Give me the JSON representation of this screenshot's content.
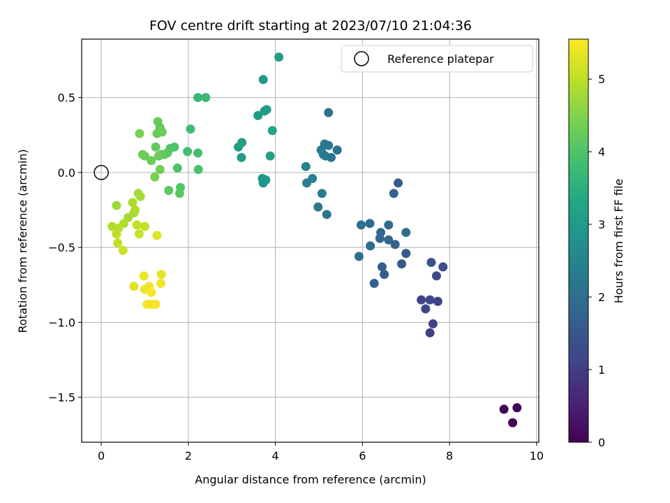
{
  "chart_data": {
    "type": "scatter",
    "title": "FOV centre drift starting at 2023/07/10 21:04:36",
    "xlabel": "Angular distance from reference (arcmin)",
    "ylabel": "Rotation from reference (arcmin)",
    "xlim": [
      -0.45,
      10.05
    ],
    "ylim": [
      -1.8,
      0.89
    ],
    "xticks": [
      0,
      2,
      4,
      6,
      8,
      10
    ],
    "xtick_labels": [
      "0",
      "2",
      "4",
      "6",
      "8",
      "10"
    ],
    "yticks": [
      0.5,
      0.0,
      -0.5,
      -1.0,
      -1.5
    ],
    "ytick_labels": [
      "0.5",
      "0.0",
      "−0.5",
      "−1.0",
      "−1.5"
    ],
    "grid": true,
    "legend": {
      "placement": "top-right",
      "label": "Reference platepar"
    },
    "reference_point": {
      "x": 0,
      "y": 0
    },
    "colorbar": {
      "label": "Hours from first FF file",
      "range": [
        0,
        5.55
      ],
      "ticks": [
        0,
        1,
        2,
        3,
        4,
        5
      ],
      "tick_labels": [
        "0",
        "1",
        "2",
        "3",
        "4",
        "5"
      ],
      "colormap": "viridis"
    },
    "points": [
      {
        "x": 9.25,
        "y": -1.58,
        "t": 0.05
      },
      {
        "x": 9.55,
        "y": -1.57,
        "t": 0.03
      },
      {
        "x": 9.45,
        "y": -1.67,
        "t": 0.08
      },
      {
        "x": 7.55,
        "y": -1.07,
        "t": 1.0
      },
      {
        "x": 7.62,
        "y": -1.01,
        "t": 1.05
      },
      {
        "x": 7.35,
        "y": -0.85,
        "t": 1.1
      },
      {
        "x": 7.45,
        "y": -0.91,
        "t": 1.15
      },
      {
        "x": 7.55,
        "y": -0.85,
        "t": 1.2
      },
      {
        "x": 7.73,
        "y": -0.86,
        "t": 1.1
      },
      {
        "x": 7.7,
        "y": -0.69,
        "t": 1.25
      },
      {
        "x": 7.85,
        "y": -0.63,
        "t": 1.3
      },
      {
        "x": 7.58,
        "y": -0.6,
        "t": 1.35
      },
      {
        "x": 6.9,
        "y": -0.61,
        "t": 1.5
      },
      {
        "x": 7.0,
        "y": -0.54,
        "t": 1.55
      },
      {
        "x": 6.5,
        "y": -0.68,
        "t": 1.6
      },
      {
        "x": 6.45,
        "y": -0.63,
        "t": 1.65
      },
      {
        "x": 6.27,
        "y": -0.74,
        "t": 1.7
      },
      {
        "x": 6.75,
        "y": -0.48,
        "t": 1.75
      },
      {
        "x": 6.6,
        "y": -0.45,
        "t": 1.8
      },
      {
        "x": 6.4,
        "y": -0.44,
        "t": 1.85
      },
      {
        "x": 6.42,
        "y": -0.4,
        "t": 1.9
      },
      {
        "x": 6.6,
        "y": -0.35,
        "t": 1.95
      },
      {
        "x": 7.0,
        "y": -0.4,
        "t": 1.95
      },
      {
        "x": 6.18,
        "y": -0.49,
        "t": 2.0
      },
      {
        "x": 5.92,
        "y": -0.56,
        "t": 2.05
      },
      {
        "x": 5.97,
        "y": -0.35,
        "t": 2.0
      },
      {
        "x": 6.17,
        "y": -0.34,
        "t": 1.95
      },
      {
        "x": 6.72,
        "y": -0.14,
        "t": 1.7
      },
      {
        "x": 6.82,
        "y": -0.07,
        "t": 1.65
      },
      {
        "x": 5.18,
        "y": -0.28,
        "t": 2.2
      },
      {
        "x": 4.98,
        "y": -0.23,
        "t": 2.25
      },
      {
        "x": 5.07,
        "y": -0.14,
        "t": 2.3
      },
      {
        "x": 4.72,
        "y": -0.07,
        "t": 2.35
      },
      {
        "x": 4.85,
        "y": -0.04,
        "t": 2.4
      },
      {
        "x": 4.7,
        "y": 0.04,
        "t": 2.45
      },
      {
        "x": 5.05,
        "y": 0.15,
        "t": 2.3
      },
      {
        "x": 5.1,
        "y": 0.12,
        "t": 2.35
      },
      {
        "x": 5.15,
        "y": 0.11,
        "t": 2.3
      },
      {
        "x": 5.13,
        "y": 0.19,
        "t": 2.25
      },
      {
        "x": 5.22,
        "y": 0.18,
        "t": 2.2
      },
      {
        "x": 5.28,
        "y": 0.1,
        "t": 2.15
      },
      {
        "x": 5.42,
        "y": 0.15,
        "t": 2.1
      },
      {
        "x": 5.22,
        "y": 0.4,
        "t": 2.1
      },
      {
        "x": 3.7,
        "y": -0.04,
        "t": 2.9
      },
      {
        "x": 3.78,
        "y": -0.05,
        "t": 2.95
      },
      {
        "x": 3.72,
        "y": -0.07,
        "t": 2.9
      },
      {
        "x": 3.22,
        "y": 0.1,
        "t": 3.0
      },
      {
        "x": 3.15,
        "y": 0.17,
        "t": 3.05
      },
      {
        "x": 3.23,
        "y": 0.2,
        "t": 3.1
      },
      {
        "x": 3.88,
        "y": 0.11,
        "t": 3.15
      },
      {
        "x": 3.93,
        "y": 0.28,
        "t": 3.2
      },
      {
        "x": 3.6,
        "y": 0.38,
        "t": 3.05
      },
      {
        "x": 3.75,
        "y": 0.41,
        "t": 3.0
      },
      {
        "x": 3.8,
        "y": 0.42,
        "t": 3.05
      },
      {
        "x": 3.72,
        "y": 0.62,
        "t": 2.95
      },
      {
        "x": 4.08,
        "y": 0.77,
        "t": 3.1
      },
      {
        "x": 2.22,
        "y": 0.5,
        "t": 3.7
      },
      {
        "x": 2.4,
        "y": 0.5,
        "t": 3.75
      },
      {
        "x": 2.05,
        "y": 0.29,
        "t": 3.8
      },
      {
        "x": 1.98,
        "y": 0.14,
        "t": 3.85
      },
      {
        "x": 2.22,
        "y": 0.13,
        "t": 3.9
      },
      {
        "x": 2.23,
        "y": 0.02,
        "t": 3.95
      },
      {
        "x": 1.75,
        "y": 0.03,
        "t": 4.0
      },
      {
        "x": 1.82,
        "y": -0.1,
        "t": 4.05
      },
      {
        "x": 1.8,
        "y": -0.14,
        "t": 4.1
      },
      {
        "x": 1.55,
        "y": -0.12,
        "t": 4.15
      },
      {
        "x": 1.68,
        "y": 0.17,
        "t": 4.0
      },
      {
        "x": 1.58,
        "y": 0.16,
        "t": 4.05
      },
      {
        "x": 1.52,
        "y": 0.13,
        "t": 4.1
      },
      {
        "x": 1.45,
        "y": 0.12,
        "t": 4.15
      },
      {
        "x": 1.38,
        "y": 0.12,
        "t": 4.2
      },
      {
        "x": 1.32,
        "y": 0.11,
        "t": 4.25
      },
      {
        "x": 1.25,
        "y": 0.17,
        "t": 4.2
      },
      {
        "x": 1.15,
        "y": 0.08,
        "t": 4.3
      },
      {
        "x": 1.35,
        "y": 0.02,
        "t": 4.35
      },
      {
        "x": 1.23,
        "y": -0.03,
        "t": 4.4
      },
      {
        "x": 0.95,
        "y": 0.12,
        "t": 4.35
      },
      {
        "x": 1.0,
        "y": 0.11,
        "t": 4.3
      },
      {
        "x": 0.88,
        "y": 0.26,
        "t": 4.4
      },
      {
        "x": 1.28,
        "y": 0.26,
        "t": 4.3
      },
      {
        "x": 1.3,
        "y": 0.34,
        "t": 4.25
      },
      {
        "x": 1.35,
        "y": 0.3,
        "t": 4.2
      },
      {
        "x": 1.4,
        "y": 0.27,
        "t": 4.3
      },
      {
        "x": 0.85,
        "y": -0.14,
        "t": 4.75
      },
      {
        "x": 0.9,
        "y": -0.16,
        "t": 4.8
      },
      {
        "x": 0.72,
        "y": -0.2,
        "t": 4.85
      },
      {
        "x": 0.78,
        "y": -0.25,
        "t": 4.9
      },
      {
        "x": 0.75,
        "y": -0.27,
        "t": 4.85
      },
      {
        "x": 0.62,
        "y": -0.3,
        "t": 4.8
      },
      {
        "x": 0.35,
        "y": -0.22,
        "t": 4.75
      },
      {
        "x": 0.52,
        "y": -0.34,
        "t": 4.9
      },
      {
        "x": 0.4,
        "y": -0.37,
        "t": 4.95
      },
      {
        "x": 0.25,
        "y": -0.36,
        "t": 4.9
      },
      {
        "x": 0.35,
        "y": -0.41,
        "t": 5.0
      },
      {
        "x": 0.38,
        "y": -0.47,
        "t": 5.05
      },
      {
        "x": 0.5,
        "y": -0.52,
        "t": 5.1
      },
      {
        "x": 0.82,
        "y": -0.35,
        "t": 5.0
      },
      {
        "x": 1.0,
        "y": -0.36,
        "t": 5.05
      },
      {
        "x": 0.87,
        "y": -0.41,
        "t": 5.1
      },
      {
        "x": 1.28,
        "y": -0.42,
        "t": 5.3
      },
      {
        "x": 1.38,
        "y": -0.68,
        "t": 5.35
      },
      {
        "x": 0.98,
        "y": -0.69,
        "t": 5.4
      },
      {
        "x": 1.37,
        "y": -0.74,
        "t": 5.45
      },
      {
        "x": 0.75,
        "y": -0.76,
        "t": 5.3
      },
      {
        "x": 1.0,
        "y": -0.78,
        "t": 5.4
      },
      {
        "x": 1.1,
        "y": -0.76,
        "t": 5.45
      },
      {
        "x": 1.15,
        "y": -0.8,
        "t": 5.5
      },
      {
        "x": 1.05,
        "y": -0.88,
        "t": 5.5
      },
      {
        "x": 1.15,
        "y": -0.88,
        "t": 5.45
      },
      {
        "x": 1.25,
        "y": -0.88,
        "t": 5.5
      }
    ]
  }
}
